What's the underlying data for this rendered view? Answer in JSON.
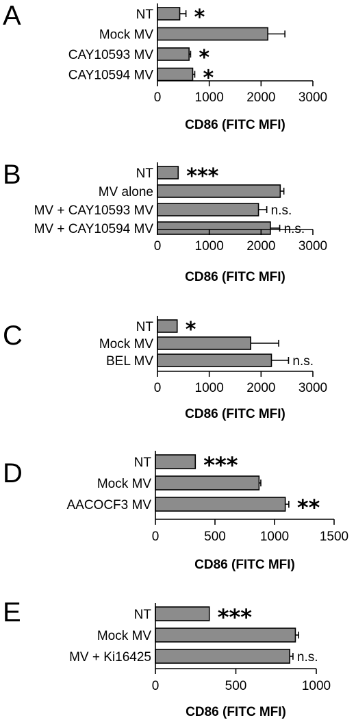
{
  "chart_data": [
    {
      "type": "bar",
      "orientation": "horizontal",
      "panel": "A",
      "categories": [
        "NT",
        "Mock MV",
        "CAY10593 MV",
        "CAY10594 MV"
      ],
      "values": [
        430,
        2130,
        610,
        680
      ],
      "errors": [
        120,
        330,
        30,
        40
      ],
      "significance": [
        "*",
        "",
        "*",
        "*"
      ],
      "xlabel": "CD86 (FITC MFI)",
      "xlim": [
        0,
        3000
      ],
      "ticks": [
        "0",
        "1000",
        "2000",
        "3000"
      ]
    },
    {
      "type": "bar",
      "orientation": "horizontal",
      "panel": "B",
      "categories": [
        "NT",
        "MV alone",
        "MV + CAY10593 MV",
        "MV + CAY10594 MV"
      ],
      "values": [
        400,
        2370,
        1950,
        2180
      ],
      "errors": [
        0,
        70,
        160,
        180
      ],
      "significance": [
        "***",
        "",
        "n.s.",
        "n.s."
      ],
      "xlabel": "CD86 (FITC MFI)",
      "xlim": [
        0,
        3000
      ],
      "ticks": [
        "0",
        "1000",
        "2000",
        "3000"
      ]
    },
    {
      "type": "bar",
      "orientation": "horizontal",
      "panel": "C",
      "categories": [
        "NT",
        "Mock MV",
        "BEL MV"
      ],
      "values": [
        380,
        1800,
        2200
      ],
      "errors": [
        0,
        540,
        330
      ],
      "significance": [
        "*",
        "",
        "n.s."
      ],
      "xlabel": "CD86 (FITC MFI)",
      "xlim": [
        0,
        3000
      ],
      "ticks": [
        "0",
        "1000",
        "2000",
        "3000"
      ]
    },
    {
      "type": "bar",
      "orientation": "horizontal",
      "panel": "D",
      "categories": [
        "NT",
        "Mock MV",
        "AACOCF3 MV"
      ],
      "values": [
        335,
        870,
        1090
      ],
      "errors": [
        0,
        15,
        30
      ],
      "significance": [
        "***",
        "",
        "**"
      ],
      "xlabel": "CD86 (FITC MFI)",
      "xlim": [
        0,
        1500
      ],
      "ticks": [
        "0",
        "500",
        "1000",
        "1500"
      ]
    },
    {
      "type": "bar",
      "orientation": "horizontal",
      "panel": "E",
      "categories": [
        "NT",
        "Mock MV",
        "MV + Ki16425"
      ],
      "values": [
        335,
        870,
        835
      ],
      "errors": [
        0,
        20,
        20
      ],
      "significance": [
        "***",
        "",
        "n.s."
      ],
      "xlabel": "CD86 (FITC MFI)",
      "xlim": [
        0,
        1000
      ],
      "ticks": [
        "0",
        "500",
        "1000"
      ]
    }
  ]
}
